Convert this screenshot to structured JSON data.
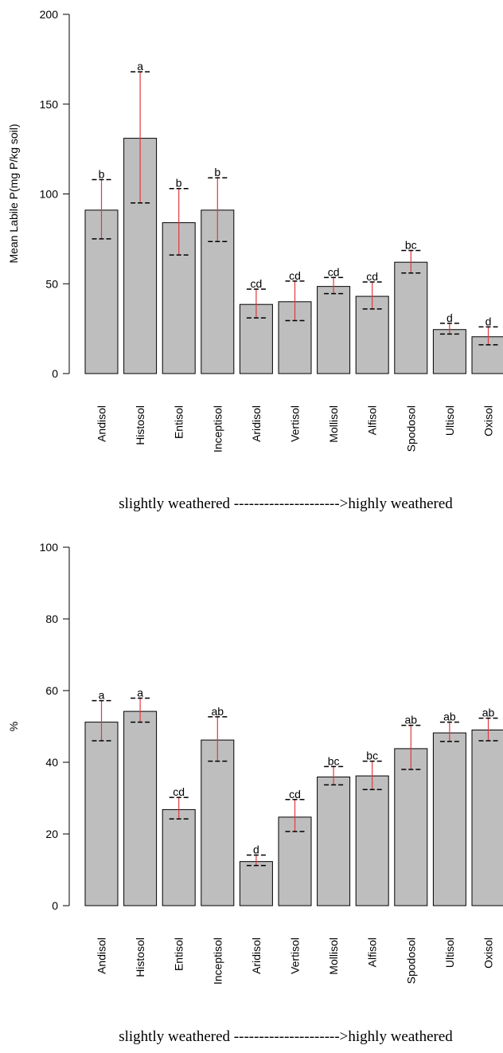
{
  "chart_data": [
    {
      "type": "bar",
      "categories": [
        "Andisol",
        "Histosol",
        "Entisol",
        "Inceptisol",
        "Aridisol",
        "Vertisol",
        "Mollisol",
        "Alfisol",
        "Spodosol",
        "Ultisol",
        "Oxisol"
      ],
      "values": [
        91,
        131,
        84,
        91,
        38.5,
        40,
        48.5,
        43,
        62,
        24.5,
        20.5
      ],
      "error_low": [
        75,
        95,
        66,
        73.5,
        31,
        29.5,
        44.5,
        36,
        56,
        22,
        16
      ],
      "error_high": [
        108,
        168,
        103,
        109,
        47,
        51.5,
        53.5,
        51,
        68.5,
        28,
        26
      ],
      "group_letters": [
        "b",
        "a",
        "b",
        "b",
        "cd",
        "cd",
        "cd",
        "cd",
        "bc",
        "d",
        "d"
      ],
      "ylabel": "Mean Labile P(mg P/kg soil)",
      "xlabel": "slightly weathered --------------------->highly weathered",
      "yticks": [
        0,
        50,
        100,
        150,
        200
      ],
      "ylim": [
        0,
        200
      ],
      "colors": {
        "bar": "#bebebe",
        "bar_edge": "#000000",
        "error_bar": "#e0383f",
        "cap": "#000000"
      }
    },
    {
      "type": "bar",
      "categories": [
        "Andisol",
        "Histosol",
        "Entisol",
        "Inceptisol",
        "Aridisol",
        "Vertisol",
        "Mollisol",
        "Alfisol",
        "Spodosol",
        "Ultisol",
        "Oxisol"
      ],
      "values": [
        51.2,
        54.2,
        26.8,
        46.2,
        12.3,
        24.7,
        35.9,
        36.2,
        43.8,
        48.2,
        49
      ],
      "error_low": [
        46,
        51.2,
        24.2,
        40.3,
        11.2,
        20.7,
        33.7,
        32.4,
        38,
        45.8,
        46
      ],
      "error_high": [
        57.2,
        57.9,
        30.2,
        52.7,
        14.1,
        29.6,
        38.8,
        40.3,
        50.3,
        51.2,
        52.3
      ],
      "group_letters": [
        "a",
        "a",
        "cd",
        "ab",
        "d",
        "cd",
        "bc",
        "bc",
        "ab",
        "ab",
        "ab"
      ],
      "ylabel": "%",
      "xlabel": "slightly weathered --------------------->highly weathered",
      "yticks": [
        0,
        20,
        40,
        60,
        80,
        100
      ],
      "ylim": [
        0,
        100
      ],
      "colors": {
        "bar": "#bebebe",
        "bar_edge": "#000000",
        "error_bar": "#e0383f",
        "cap": "#000000"
      }
    }
  ]
}
